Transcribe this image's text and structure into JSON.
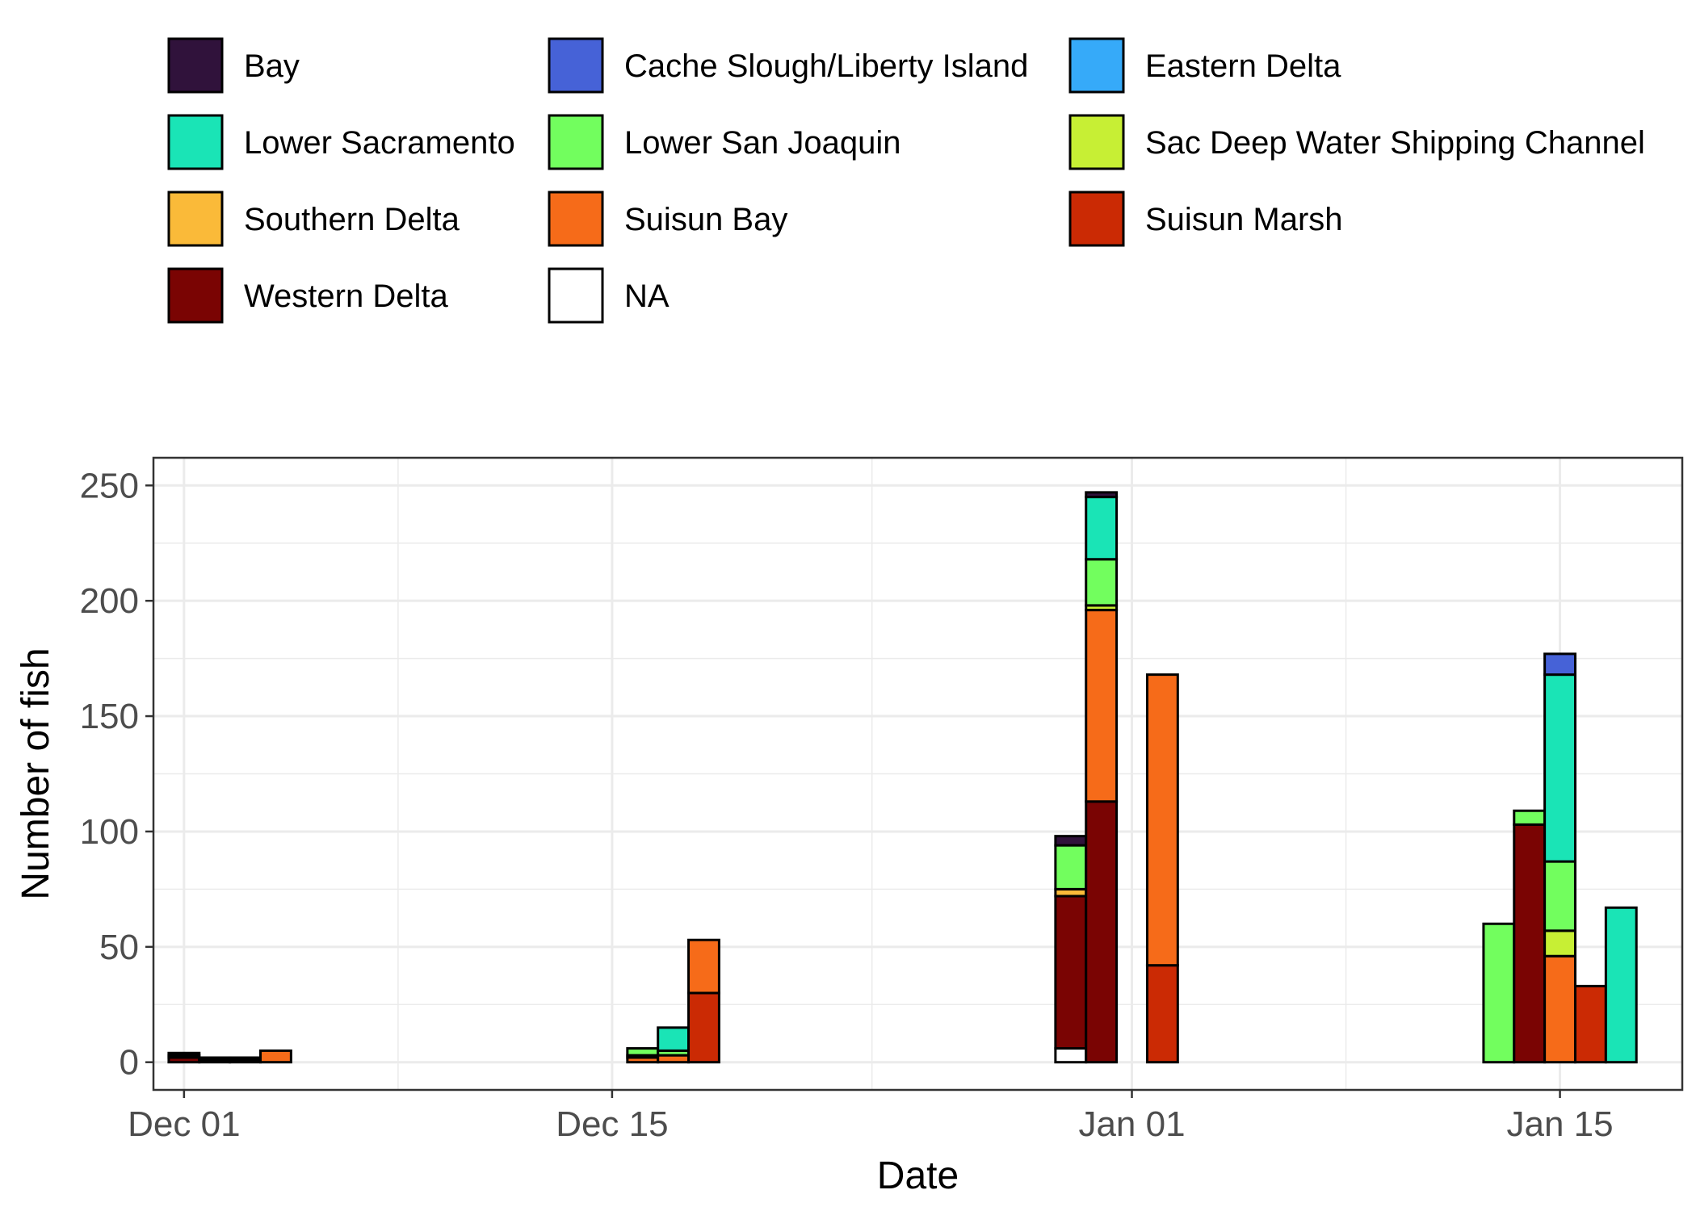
{
  "chart_data": {
    "type": "bar",
    "stacked": true,
    "xlabel": "Date",
    "ylabel": "Number of fish",
    "xlim": [
      "2022-11-30",
      "2023-01-19"
    ],
    "ylim": [
      -12,
      262
    ],
    "x_ticks": [
      {
        "date": "2022-12-01",
        "label": "Dec 01"
      },
      {
        "date": "2022-12-15",
        "label": "Dec 15"
      },
      {
        "date": "2023-01-01",
        "label": "Jan 01"
      },
      {
        "date": "2023-01-15",
        "label": "Jan 15"
      }
    ],
    "y_ticks": [
      0,
      50,
      100,
      150,
      200,
      250
    ],
    "grid": true,
    "legend_position": "top",
    "legend": [
      {
        "name": "Bay",
        "color": "#30123B"
      },
      {
        "name": "Cache Slough/Liberty Island",
        "color": "#4662D7"
      },
      {
        "name": "Eastern Delta",
        "color": "#36AAF9"
      },
      {
        "name": "Lower Sacramento",
        "color": "#1AE4B6"
      },
      {
        "name": "Lower San Joaquin",
        "color": "#72FE5E"
      },
      {
        "name": "Sac Deep Water Shipping Channel",
        "color": "#C7EF34"
      },
      {
        "name": "Southern Delta",
        "color": "#FABA39"
      },
      {
        "name": "Suisun Bay",
        "color": "#F66B19"
      },
      {
        "name": "Suisun Marsh",
        "color": "#CB2A04"
      },
      {
        "name": "Western Delta",
        "color": "#7A0403"
      },
      {
        "name": "NA",
        "color": "#FFFFFF"
      }
    ],
    "bars": [
      {
        "date": "2022-12-01",
        "segments": [
          {
            "region": "Western Delta",
            "value": 2
          },
          {
            "region": "Lower San Joaquin",
            "value": 1
          },
          {
            "region": "Bay",
            "value": 1
          }
        ]
      },
      {
        "date": "2022-12-02",
        "segments": [
          {
            "region": "Western Delta",
            "value": 1
          },
          {
            "region": "Suisun Bay",
            "value": 1
          }
        ]
      },
      {
        "date": "2022-12-03",
        "segments": [
          {
            "region": "Western Delta",
            "value": 1
          },
          {
            "region": "Lower Sacramento",
            "value": 1
          }
        ]
      },
      {
        "date": "2022-12-04",
        "segments": [
          {
            "region": "Suisun Bay",
            "value": 5
          }
        ]
      },
      {
        "date": "2022-12-16",
        "segments": [
          {
            "region": "Suisun Bay",
            "value": 2
          },
          {
            "region": "Sac Deep Water Shipping Channel",
            "value": 1
          },
          {
            "region": "Lower San Joaquin",
            "value": 3
          }
        ]
      },
      {
        "date": "2022-12-17",
        "segments": [
          {
            "region": "Suisun Bay",
            "value": 3
          },
          {
            "region": "Lower San Joaquin",
            "value": 2
          },
          {
            "region": "Lower Sacramento",
            "value": 10
          }
        ]
      },
      {
        "date": "2022-12-18",
        "segments": [
          {
            "region": "Suisun Marsh",
            "value": 30
          },
          {
            "region": "Suisun Bay",
            "value": 23
          }
        ]
      },
      {
        "date": "2022-12-30",
        "segments": [
          {
            "region": "NA",
            "value": 6
          },
          {
            "region": "Western Delta",
            "value": 66
          },
          {
            "region": "Southern Delta",
            "value": 3
          },
          {
            "region": "Lower San Joaquin",
            "value": 19
          },
          {
            "region": "Bay",
            "value": 4
          }
        ]
      },
      {
        "date": "2022-12-31",
        "segments": [
          {
            "region": "Western Delta",
            "value": 113
          },
          {
            "region": "Suisun Bay",
            "value": 83
          },
          {
            "region": "Sac Deep Water Shipping Channel",
            "value": 2
          },
          {
            "region": "Lower San Joaquin",
            "value": 20
          },
          {
            "region": "Lower Sacramento",
            "value": 27
          },
          {
            "region": "Bay",
            "value": 2
          }
        ]
      },
      {
        "date": "2023-01-02",
        "segments": [
          {
            "region": "Suisun Marsh",
            "value": 42
          },
          {
            "region": "Suisun Bay",
            "value": 126
          }
        ]
      },
      {
        "date": "2023-01-13",
        "segments": [
          {
            "region": "Lower San Joaquin",
            "value": 60
          }
        ]
      },
      {
        "date": "2023-01-14",
        "segments": [
          {
            "region": "Western Delta",
            "value": 103
          },
          {
            "region": "Lower San Joaquin",
            "value": 6
          }
        ]
      },
      {
        "date": "2023-01-15",
        "segments": [
          {
            "region": "Suisun Bay",
            "value": 46
          },
          {
            "region": "Sac Deep Water Shipping Channel",
            "value": 11
          },
          {
            "region": "Lower San Joaquin",
            "value": 30
          },
          {
            "region": "Lower Sacramento",
            "value": 81
          },
          {
            "region": "Cache Slough/Liberty Island",
            "value": 9
          }
        ]
      },
      {
        "date": "2023-01-16",
        "segments": [
          {
            "region": "Suisun Marsh",
            "value": 33
          }
        ]
      },
      {
        "date": "2023-01-17",
        "segments": [
          {
            "region": "Lower Sacramento",
            "value": 67
          }
        ]
      }
    ]
  }
}
